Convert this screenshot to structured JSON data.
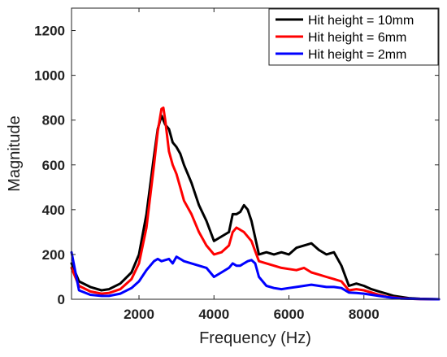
{
  "chart_data": {
    "type": "line",
    "title": "",
    "xlabel": "Frequency (Hz)",
    "ylabel": "Magnitude",
    "xlim": [
      200,
      10000
    ],
    "ylim": [
      0,
      1300
    ],
    "xticks": [
      2000,
      4000,
      6000,
      8000
    ],
    "xtick_labels": [
      "2000",
      "4000",
      "6000",
      "8000"
    ],
    "yticks": [
      0,
      200,
      400,
      600,
      800,
      1000,
      1200
    ],
    "ytick_labels": [
      "0",
      "200",
      "400",
      "600",
      "800",
      "1000",
      "1200"
    ],
    "grid": false,
    "legend_position": "top-right",
    "series": [
      {
        "name": "Hit height = 10mm",
        "color": "#000000",
        "x": [
          200,
          400,
          700,
          1000,
          1200,
          1500,
          1800,
          2000,
          2200,
          2400,
          2500,
          2600,
          2650,
          2700,
          2800,
          2900,
          3000,
          3100,
          3200,
          3400,
          3600,
          3800,
          4000,
          4200,
          4400,
          4500,
          4600,
          4700,
          4800,
          4900,
          5000,
          5200,
          5400,
          5600,
          5800,
          6000,
          6200,
          6400,
          6600,
          6800,
          7000,
          7200,
          7400,
          7600,
          7800,
          8000,
          8200,
          8400,
          8600,
          8800,
          9000,
          9200,
          9500,
          10000
        ],
        "values": [
          160,
          80,
          55,
          40,
          45,
          70,
          120,
          200,
          380,
          640,
          760,
          820,
          800,
          780,
          760,
          700,
          680,
          650,
          600,
          520,
          420,
          350,
          260,
          280,
          300,
          380,
          380,
          390,
          420,
          400,
          350,
          200,
          210,
          200,
          210,
          200,
          230,
          240,
          250,
          220,
          200,
          210,
          150,
          60,
          70,
          60,
          45,
          35,
          25,
          15,
          10,
          5,
          2,
          0
        ]
      },
      {
        "name": "Hit height = 6mm",
        "color": "#ff0000",
        "x": [
          200,
          400,
          700,
          1000,
          1200,
          1500,
          1800,
          2000,
          2200,
          2400,
          2500,
          2600,
          2650,
          2700,
          2800,
          2900,
          3000,
          3100,
          3200,
          3400,
          3600,
          3800,
          4000,
          4200,
          4400,
          4500,
          4600,
          4700,
          4800,
          4900,
          5000,
          5200,
          5400,
          5600,
          5800,
          6000,
          6200,
          6400,
          6600,
          6800,
          7000,
          7200,
          7400,
          7600,
          7800,
          8000,
          8200,
          8400,
          8600,
          8800,
          9000,
          9200,
          9500,
          10000
        ],
        "values": [
          140,
          60,
          35,
          25,
          28,
          45,
          90,
          160,
          320,
          600,
          750,
          850,
          855,
          800,
          660,
          600,
          560,
          500,
          440,
          380,
          300,
          240,
          200,
          210,
          240,
          300,
          320,
          310,
          300,
          280,
          260,
          170,
          160,
          150,
          140,
          135,
          130,
          140,
          120,
          110,
          100,
          90,
          80,
          40,
          45,
          40,
          30,
          20,
          12,
          8,
          4,
          2,
          1,
          0
        ]
      },
      {
        "name": "Hit height = 2mm",
        "color": "#0000ff",
        "x": [
          200,
          400,
          700,
          1000,
          1200,
          1500,
          1800,
          2000,
          2200,
          2400,
          2500,
          2600,
          2700,
          2800,
          2900,
          3000,
          3100,
          3200,
          3400,
          3600,
          3800,
          4000,
          4200,
          4400,
          4500,
          4600,
          4700,
          4800,
          4900,
          5000,
          5100,
          5200,
          5400,
          5600,
          5800,
          6000,
          6200,
          6400,
          6600,
          6800,
          7000,
          7200,
          7400,
          7600,
          7800,
          8000,
          8200,
          8400,
          8600,
          8800,
          9000,
          9500,
          10000
        ],
        "values": [
          210,
          40,
          20,
          15,
          15,
          25,
          50,
          80,
          130,
          170,
          180,
          170,
          175,
          180,
          160,
          190,
          180,
          170,
          160,
          150,
          140,
          100,
          120,
          140,
          160,
          150,
          150,
          160,
          170,
          175,
          160,
          100,
          60,
          50,
          45,
          50,
          55,
          60,
          65,
          60,
          55,
          55,
          50,
          30,
          28,
          25,
          20,
          15,
          10,
          6,
          3,
          1,
          0
        ]
      }
    ]
  }
}
